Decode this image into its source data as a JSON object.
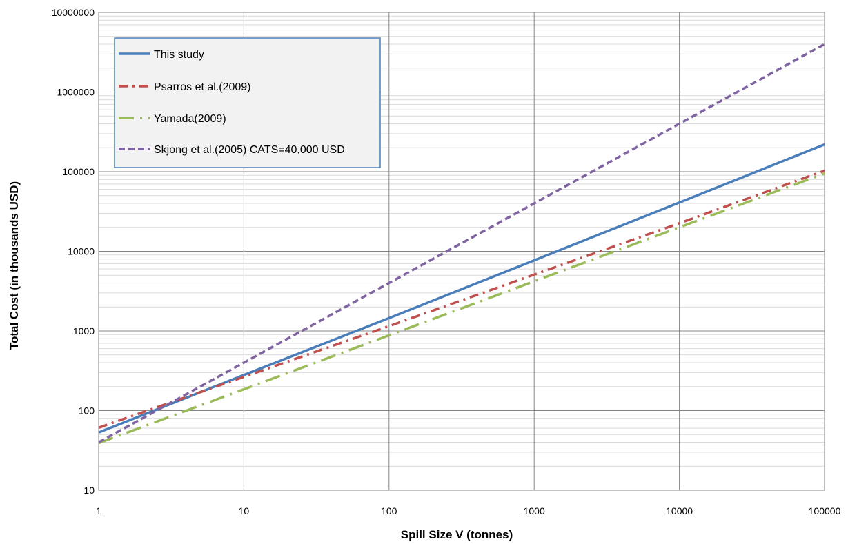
{
  "chart_data": {
    "type": "line",
    "title": "",
    "xlabel": "Spill Size V (tonnes)",
    "ylabel": "Total  Cost  (in thousands USD)",
    "x_scale": "log",
    "y_scale": "log",
    "xlim": [
      1,
      100000
    ],
    "ylim": [
      10,
      10000000
    ],
    "x_ticks": [
      "1",
      "10",
      "100",
      "1000",
      "10000",
      "100000"
    ],
    "y_ticks": [
      "10",
      "100",
      "1000",
      "10000",
      "100000",
      "1000000",
      "10000000"
    ],
    "grid": "on (major and minor on y, major on x)",
    "legend_position": "top-left",
    "series": [
      {
        "name": "This study",
        "color": "#4a7ebb",
        "style": "solid",
        "points": [
          [
            1,
            53
          ],
          [
            10,
            280
          ],
          [
            100,
            1450
          ],
          [
            1000,
            7700
          ],
          [
            10000,
            41000
          ],
          [
            100000,
            220000
          ]
        ]
      },
      {
        "name": "Psarros et al.(2009)",
        "color": "#c0504d",
        "style": "dash-dot",
        "points": [
          [
            1,
            61
          ],
          [
            10,
            265
          ],
          [
            100,
            1150
          ],
          [
            1000,
            5100
          ],
          [
            10000,
            22500
          ],
          [
            100000,
            103000
          ]
        ]
      },
      {
        "name": "Yamada(2009)",
        "color": "#9bbb59",
        "style": "long-dash-dot",
        "points": [
          [
            1,
            39
          ],
          [
            10,
            185
          ],
          [
            100,
            880
          ],
          [
            1000,
            4200
          ],
          [
            10000,
            20000
          ],
          [
            100000,
            95000
          ]
        ]
      },
      {
        "name": "Skjong et al.(2005) CATS=40,000 USD",
        "color": "#8064a2",
        "style": "dash",
        "points": [
          [
            1,
            40
          ],
          [
            10,
            400
          ],
          [
            100,
            4000
          ],
          [
            1000,
            40000
          ],
          [
            10000,
            400000
          ],
          [
            100000,
            4000000
          ]
        ]
      }
    ]
  }
}
